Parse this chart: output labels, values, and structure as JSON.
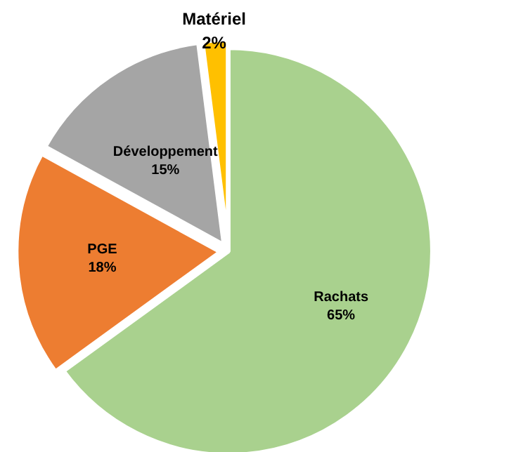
{
  "chart_data": {
    "type": "pie",
    "categories": [
      "Rachats",
      "PGE",
      "Développement",
      "Matériel"
    ],
    "values": [
      65,
      18,
      15,
      2
    ],
    "value_labels": [
      "65%",
      "18%",
      "15%",
      "2%"
    ],
    "colors": [
      "#a9d18e",
      "#ed7d31",
      "#a5a5a5",
      "#ffc000"
    ]
  }
}
